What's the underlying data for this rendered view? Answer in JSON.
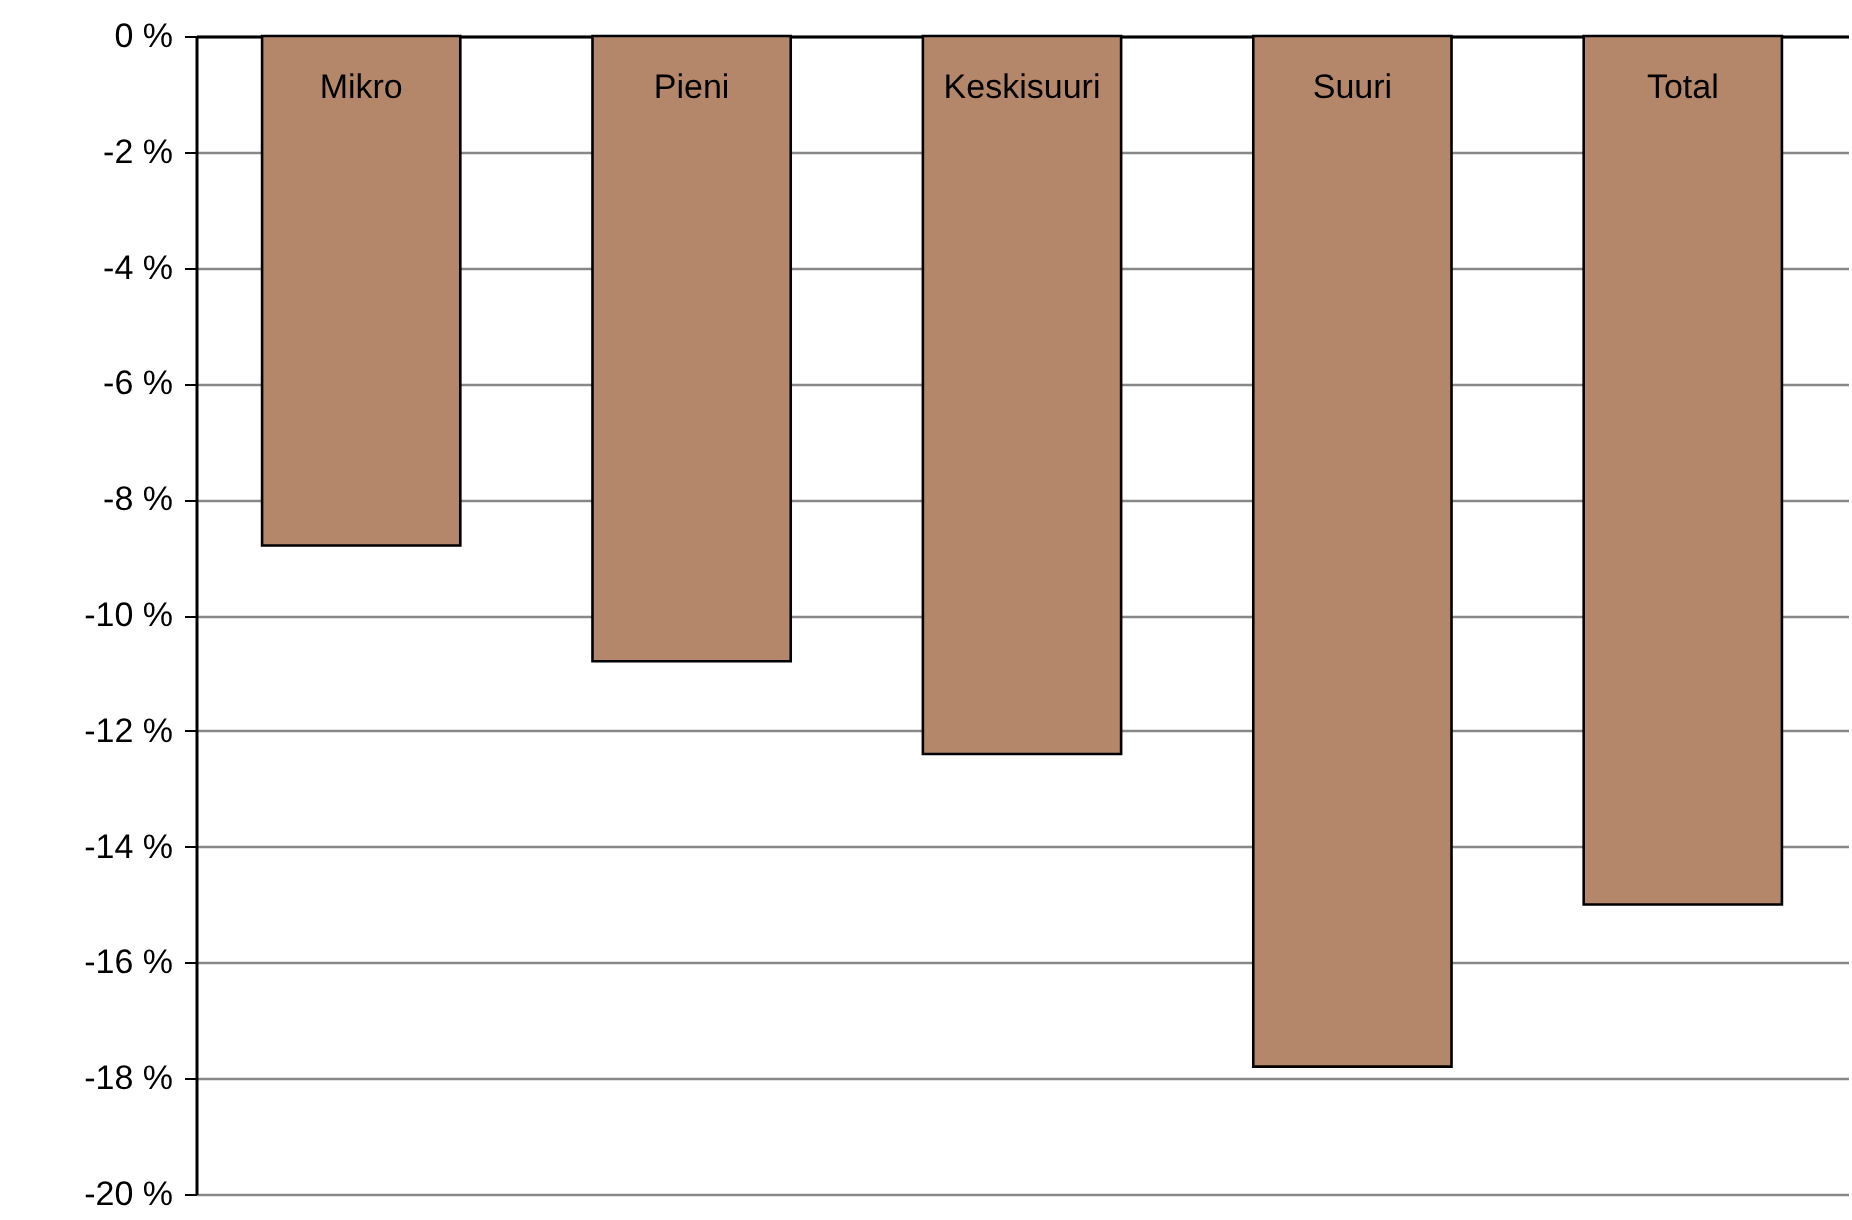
{
  "chart_data": {
    "type": "bar",
    "categories": [
      "Mikro",
      "Pieni",
      "Keskisuuri",
      "Suuri",
      "Total"
    ],
    "values": [
      -8.8,
      -10.8,
      -12.4,
      -17.8,
      -15.0
    ],
    "color": "#b5876a",
    "ylim": [
      -20,
      0
    ],
    "yticks": [
      {
        "value": -20,
        "label": "-20 %"
      },
      {
        "value": -18,
        "label": "-18 %"
      },
      {
        "value": -16,
        "label": "-16 %"
      },
      {
        "value": -14,
        "label": "-14 %"
      },
      {
        "value": -12,
        "label": "-12 %"
      },
      {
        "value": -10,
        "label": "-10 %"
      },
      {
        "value": -8,
        "label": "-8 %"
      },
      {
        "value": -6,
        "label": "-6 %"
      },
      {
        "value": -4,
        "label": "-4 %"
      },
      {
        "value": -2,
        "label": "-2 %"
      },
      {
        "value": 0,
        "label": "0 %"
      }
    ],
    "grid": "y"
  }
}
